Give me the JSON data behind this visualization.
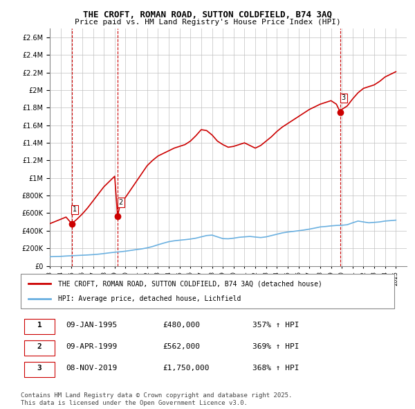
{
  "title_line1": "THE CROFT, ROMAN ROAD, SUTTON COLDFIELD, B74 3AQ",
  "title_line2": "Price paid vs. HM Land Registry's House Price Index (HPI)",
  "legend_line1": "THE CROFT, ROMAN ROAD, SUTTON COLDFIELD, B74 3AQ (detached house)",
  "legend_line2": "HPI: Average price, detached house, Lichfield",
  "footer": "Contains HM Land Registry data © Crown copyright and database right 2025.\nThis data is licensed under the Open Government Licence v3.0.",
  "sale_dates": [
    1995.03,
    1999.27,
    2019.85
  ],
  "sale_prices": [
    480000,
    562000,
    1750000
  ],
  "sale_labels": [
    "1",
    "2",
    "3"
  ],
  "table_rows": [
    [
      "1",
      "09-JAN-1995",
      "£480,000",
      "357% ↑ HPI"
    ],
    [
      "2",
      "09-APR-1999",
      "£562,000",
      "369% ↑ HPI"
    ],
    [
      "3",
      "08-NOV-2019",
      "£1,750,000",
      "368% ↑ HPI"
    ]
  ],
  "hpi_color": "#6ab0e0",
  "price_color": "#cc0000",
  "sale_marker_color": "#cc0000",
  "background_color": "#ffffff",
  "grid_color": "#c0c0c0",
  "ylim": [
    0,
    2700000
  ],
  "yticks": [
    0,
    200000,
    400000,
    600000,
    800000,
    1000000,
    1200000,
    1400000,
    1600000,
    1800000,
    2000000,
    2200000,
    2400000,
    2600000
  ],
  "xlim_start": 1993.0,
  "xlim_end": 2026.0,
  "xtick_years": [
    1993,
    1994,
    1995,
    1996,
    1997,
    1998,
    1999,
    2000,
    2001,
    2002,
    2003,
    2004,
    2005,
    2006,
    2007,
    2008,
    2009,
    2010,
    2011,
    2012,
    2013,
    2014,
    2015,
    2016,
    2017,
    2018,
    2019,
    2020,
    2021,
    2022,
    2023,
    2024,
    2025
  ],
  "hpi_x": [
    1993.0,
    1993.5,
    1994.0,
    1994.5,
    1995.0,
    1995.5,
    1996.0,
    1996.5,
    1997.0,
    1997.5,
    1998.0,
    1998.5,
    1999.0,
    1999.5,
    2000.0,
    2000.5,
    2001.0,
    2001.5,
    2002.0,
    2002.5,
    2003.0,
    2003.5,
    2004.0,
    2004.5,
    2005.0,
    2005.5,
    2006.0,
    2006.5,
    2007.0,
    2007.5,
    2008.0,
    2008.5,
    2009.0,
    2009.5,
    2010.0,
    2010.5,
    2011.0,
    2011.5,
    2012.0,
    2012.5,
    2013.0,
    2013.5,
    2014.0,
    2014.5,
    2015.0,
    2015.5,
    2016.0,
    2016.5,
    2017.0,
    2017.5,
    2018.0,
    2018.5,
    2019.0,
    2019.5,
    2020.0,
    2020.5,
    2021.0,
    2021.5,
    2022.0,
    2022.5,
    2023.0,
    2023.5,
    2024.0,
    2024.5,
    2025.0
  ],
  "hpi_y": [
    104000,
    106000,
    108000,
    112000,
    115000,
    118000,
    121000,
    124000,
    128000,
    133000,
    140000,
    148000,
    155000,
    160000,
    167000,
    176000,
    185000,
    193000,
    205000,
    220000,
    240000,
    258000,
    275000,
    285000,
    292000,
    298000,
    305000,
    315000,
    330000,
    345000,
    350000,
    330000,
    310000,
    308000,
    315000,
    325000,
    330000,
    335000,
    328000,
    322000,
    330000,
    345000,
    360000,
    375000,
    385000,
    392000,
    400000,
    408000,
    418000,
    430000,
    443000,
    448000,
    455000,
    460000,
    462000,
    468000,
    490000,
    510000,
    500000,
    490000,
    495000,
    500000,
    510000,
    515000,
    520000
  ],
  "property_x": [
    1993.0,
    1993.5,
    1994.0,
    1994.5,
    1995.03,
    1995.5,
    1996.0,
    1996.5,
    1997.0,
    1997.5,
    1998.0,
    1998.5,
    1999.0,
    1999.27,
    1999.5,
    2000.0,
    2000.5,
    2001.0,
    2001.5,
    2002.0,
    2002.5,
    2003.0,
    2003.5,
    2004.0,
    2004.5,
    2005.0,
    2005.5,
    2006.0,
    2006.5,
    2007.0,
    2007.5,
    2008.0,
    2008.5,
    2009.0,
    2009.5,
    2010.0,
    2010.5,
    2011.0,
    2011.5,
    2012.0,
    2012.5,
    2013.0,
    2013.5,
    2014.0,
    2014.5,
    2015.0,
    2015.5,
    2016.0,
    2016.5,
    2017.0,
    2017.5,
    2018.0,
    2018.5,
    2019.0,
    2019.5,
    2019.85,
    2020.0,
    2020.5,
    2021.0,
    2021.5,
    2022.0,
    2022.5,
    2023.0,
    2023.5,
    2024.0,
    2024.5,
    2025.0
  ],
  "property_y": [
    480000,
    505000,
    530000,
    555000,
    480000,
    530000,
    590000,
    660000,
    740000,
    820000,
    900000,
    960000,
    1020000,
    562000,
    700000,
    780000,
    870000,
    960000,
    1050000,
    1140000,
    1200000,
    1250000,
    1280000,
    1310000,
    1340000,
    1360000,
    1380000,
    1420000,
    1480000,
    1550000,
    1540000,
    1490000,
    1420000,
    1380000,
    1350000,
    1360000,
    1380000,
    1400000,
    1370000,
    1340000,
    1370000,
    1420000,
    1470000,
    1530000,
    1580000,
    1620000,
    1660000,
    1700000,
    1740000,
    1780000,
    1810000,
    1840000,
    1860000,
    1880000,
    1840000,
    1750000,
    1780000,
    1820000,
    1900000,
    1970000,
    2020000,
    2040000,
    2060000,
    2100000,
    2150000,
    2180000,
    2210000
  ],
  "vline_dates": [
    1995.03,
    1999.27,
    2019.85
  ],
  "vline_color": "#cc0000"
}
